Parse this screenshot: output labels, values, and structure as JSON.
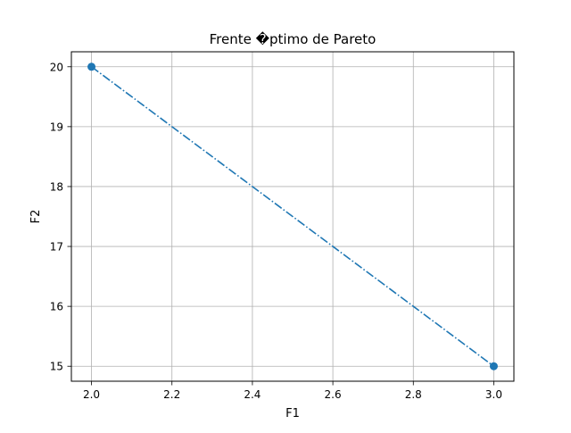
{
  "chart_data": {
    "type": "line",
    "title": "Frente �ptimo de Pareto",
    "xlabel": "F1",
    "ylabel": "F2",
    "xlim": [
      1.95,
      3.05
    ],
    "ylim": [
      14.75,
      20.25
    ],
    "xticks": [
      2.0,
      2.2,
      2.4,
      2.6,
      2.8,
      3.0
    ],
    "xtick_labels": [
      "2.0",
      "2.2",
      "2.4",
      "2.6",
      "2.8",
      "3.0"
    ],
    "yticks": [
      15,
      16,
      17,
      18,
      19,
      20
    ],
    "ytick_labels": [
      "15",
      "16",
      "17",
      "18",
      "19",
      "20"
    ],
    "grid": true,
    "line_style": "dash-dot",
    "marker": "circle",
    "color": "#1f77b4",
    "series": [
      {
        "x": [
          2.0,
          3.0
        ],
        "y": [
          20,
          15
        ]
      }
    ]
  }
}
